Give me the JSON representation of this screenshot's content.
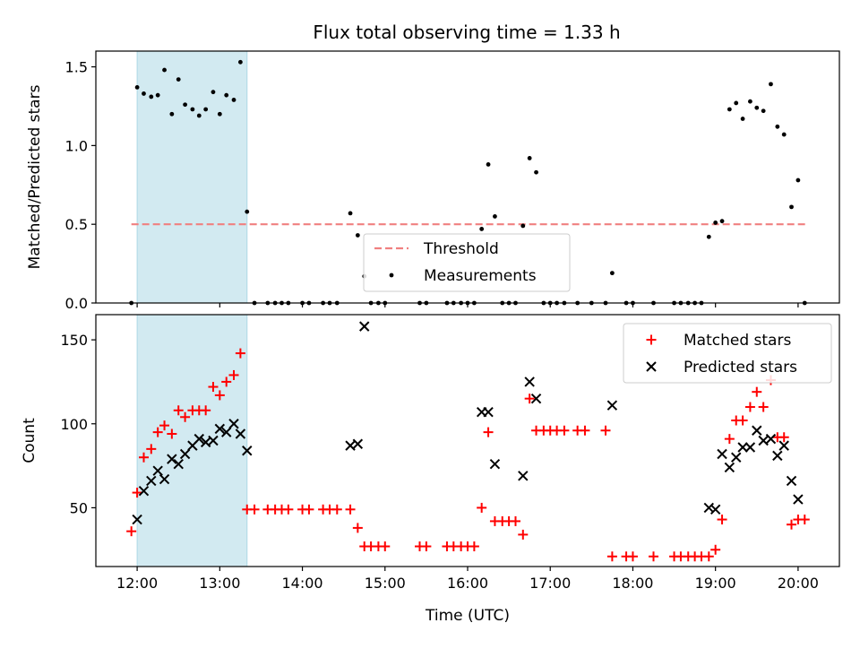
{
  "title": "Flux total observing time = 1.33 h",
  "colors": {
    "shade": "#add8e6",
    "threshold": "#f08080",
    "measurement": "#000000",
    "matched": "#ff0000",
    "predicted": "#000000"
  },
  "chart_data": [
    {
      "type": "scatter",
      "title": "Flux total observing time = 1.33 h",
      "xlabel": "",
      "ylabel": "Matched/Predicted stars",
      "xlim": [
        11.5,
        20.5
      ],
      "ylim": [
        0.0,
        1.6
      ],
      "yticks": [
        0.0,
        0.5,
        1.0,
        1.5
      ],
      "ytick_labels": [
        "0.0",
        "0.5",
        "1.0",
        "1.5"
      ],
      "shaded_span": [
        12.0,
        13.33
      ],
      "threshold": {
        "name": "Threshold",
        "value": 0.5,
        "x_range": [
          11.93,
          20.1
        ]
      },
      "legend": [
        "Threshold",
        "Measurements"
      ],
      "legend_loc": "lower center",
      "series": [
        {
          "name": "Measurements",
          "points": [
            [
              11.93,
              0.0
            ],
            [
              12.0,
              1.37
            ],
            [
              12.08,
              1.33
            ],
            [
              12.17,
              1.31
            ],
            [
              12.25,
              1.32
            ],
            [
              12.33,
              1.48
            ],
            [
              12.42,
              1.2
            ],
            [
              12.5,
              1.42
            ],
            [
              12.58,
              1.26
            ],
            [
              12.67,
              1.23
            ],
            [
              12.75,
              1.19
            ],
            [
              12.83,
              1.23
            ],
            [
              12.92,
              1.34
            ],
            [
              13.0,
              1.2
            ],
            [
              13.08,
              1.32
            ],
            [
              13.17,
              1.29
            ],
            [
              13.25,
              1.53
            ],
            [
              13.33,
              0.58
            ],
            [
              13.42,
              0.0
            ],
            [
              13.58,
              0.0
            ],
            [
              13.67,
              0.0
            ],
            [
              13.75,
              0.0
            ],
            [
              13.83,
              0.0
            ],
            [
              14.0,
              0.0
            ],
            [
              14.08,
              0.0
            ],
            [
              14.25,
              0.0
            ],
            [
              14.33,
              0.0
            ],
            [
              14.42,
              0.0
            ],
            [
              14.58,
              0.57
            ],
            [
              14.67,
              0.43
            ],
            [
              14.75,
              0.17
            ],
            [
              14.83,
              0.0
            ],
            [
              14.92,
              0.0
            ],
            [
              15.0,
              0.0
            ],
            [
              15.42,
              0.0
            ],
            [
              15.5,
              0.0
            ],
            [
              15.75,
              0.0
            ],
            [
              15.83,
              0.0
            ],
            [
              15.92,
              0.0
            ],
            [
              16.0,
              0.0
            ],
            [
              16.08,
              0.0
            ],
            [
              16.17,
              0.47
            ],
            [
              16.25,
              0.88
            ],
            [
              16.33,
              0.55
            ],
            [
              16.42,
              0.0
            ],
            [
              16.5,
              0.0
            ],
            [
              16.58,
              0.0
            ],
            [
              16.67,
              0.49
            ],
            [
              16.75,
              0.92
            ],
            [
              16.83,
              0.83
            ],
            [
              16.92,
              0.0
            ],
            [
              17.0,
              0.0
            ],
            [
              17.08,
              0.0
            ],
            [
              17.17,
              0.0
            ],
            [
              17.33,
              0.0
            ],
            [
              17.5,
              0.0
            ],
            [
              17.67,
              0.0
            ],
            [
              17.75,
              0.19
            ],
            [
              17.92,
              0.0
            ],
            [
              18.0,
              0.0
            ],
            [
              18.25,
              0.0
            ],
            [
              18.5,
              0.0
            ],
            [
              18.58,
              0.0
            ],
            [
              18.67,
              0.0
            ],
            [
              18.75,
              0.0
            ],
            [
              18.83,
              0.0
            ],
            [
              18.92,
              0.42
            ],
            [
              19.0,
              0.51
            ],
            [
              19.08,
              0.52
            ],
            [
              19.17,
              1.23
            ],
            [
              19.25,
              1.27
            ],
            [
              19.33,
              1.17
            ],
            [
              19.42,
              1.28
            ],
            [
              19.5,
              1.24
            ],
            [
              19.58,
              1.22
            ],
            [
              19.67,
              1.39
            ],
            [
              19.75,
              1.12
            ],
            [
              19.83,
              1.07
            ],
            [
              19.92,
              0.61
            ],
            [
              20.0,
              0.78
            ],
            [
              20.08,
              0.0
            ]
          ]
        }
      ]
    },
    {
      "type": "scatter",
      "title": "",
      "xlabel": "Time (UTC)",
      "ylabel": "Count",
      "xlim": [
        11.5,
        20.5
      ],
      "ylim": [
        15,
        165
      ],
      "yticks": [
        50,
        100,
        150
      ],
      "ytick_labels": [
        "50",
        "100",
        "150"
      ],
      "xticks": [
        12,
        13,
        14,
        15,
        16,
        17,
        18,
        19,
        20
      ],
      "xtick_labels": [
        "12:00",
        "13:00",
        "14:00",
        "15:00",
        "16:00",
        "17:00",
        "18:00",
        "19:00",
        "20:00"
      ],
      "shaded_span": [
        12.0,
        13.33
      ],
      "legend": [
        "Matched stars",
        "Predicted stars"
      ],
      "legend_loc": "upper right",
      "series": [
        {
          "name": "Matched stars",
          "marker": "+",
          "points": [
            [
              11.93,
              36
            ],
            [
              12.0,
              59
            ],
            [
              12.08,
              80
            ],
            [
              12.17,
              85
            ],
            [
              12.25,
              95
            ],
            [
              12.33,
              99
            ],
            [
              12.42,
              94
            ],
            [
              12.5,
              108
            ],
            [
              12.58,
              104
            ],
            [
              12.67,
              108
            ],
            [
              12.75,
              108
            ],
            [
              12.83,
              108
            ],
            [
              12.92,
              122
            ],
            [
              13.0,
              117
            ],
            [
              13.08,
              125
            ],
            [
              13.17,
              129
            ],
            [
              13.25,
              142
            ],
            [
              13.33,
              49
            ],
            [
              13.42,
              49
            ],
            [
              13.58,
              49
            ],
            [
              13.67,
              49
            ],
            [
              13.75,
              49
            ],
            [
              13.83,
              49
            ],
            [
              14.0,
              49
            ],
            [
              14.08,
              49
            ],
            [
              14.25,
              49
            ],
            [
              14.33,
              49
            ],
            [
              14.42,
              49
            ],
            [
              14.58,
              49
            ],
            [
              14.67,
              38
            ],
            [
              14.75,
              27
            ],
            [
              14.83,
              27
            ],
            [
              14.92,
              27
            ],
            [
              15.0,
              27
            ],
            [
              15.42,
              27
            ],
            [
              15.5,
              27
            ],
            [
              15.75,
              27
            ],
            [
              15.83,
              27
            ],
            [
              15.92,
              27
            ],
            [
              16.0,
              27
            ],
            [
              16.08,
              27
            ],
            [
              16.17,
              50
            ],
            [
              16.25,
              95
            ],
            [
              16.33,
              42
            ],
            [
              16.42,
              42
            ],
            [
              16.5,
              42
            ],
            [
              16.58,
              42
            ],
            [
              16.67,
              34
            ],
            [
              16.75,
              115
            ],
            [
              16.83,
              96
            ],
            [
              16.92,
              96
            ],
            [
              17.0,
              96
            ],
            [
              17.08,
              96
            ],
            [
              17.17,
              96
            ],
            [
              17.33,
              96
            ],
            [
              17.42,
              96
            ],
            [
              17.67,
              96
            ],
            [
              17.75,
              21
            ],
            [
              17.92,
              21
            ],
            [
              18.0,
              21
            ],
            [
              18.25,
              21
            ],
            [
              18.5,
              21
            ],
            [
              18.58,
              21
            ],
            [
              18.67,
              21
            ],
            [
              18.75,
              21
            ],
            [
              18.83,
              21
            ],
            [
              18.92,
              21
            ],
            [
              19.0,
              25
            ],
            [
              19.08,
              43
            ],
            [
              19.17,
              91
            ],
            [
              19.25,
              102
            ],
            [
              19.33,
              102
            ],
            [
              19.42,
              110
            ],
            [
              19.5,
              119
            ],
            [
              19.58,
              110
            ],
            [
              19.67,
              126
            ],
            [
              19.75,
              92
            ],
            [
              19.83,
              92
            ],
            [
              19.92,
              40
            ],
            [
              20.0,
              43
            ],
            [
              20.08,
              43
            ]
          ]
        },
        {
          "name": "Predicted stars",
          "marker": "x",
          "points": [
            [
              12.0,
              43
            ],
            [
              12.08,
              60
            ],
            [
              12.17,
              66
            ],
            [
              12.25,
              72
            ],
            [
              12.33,
              67
            ],
            [
              12.42,
              79
            ],
            [
              12.5,
              76
            ],
            [
              12.58,
              82
            ],
            [
              12.67,
              87
            ],
            [
              12.75,
              91
            ],
            [
              12.83,
              89
            ],
            [
              12.92,
              90
            ],
            [
              13.0,
              97
            ],
            [
              13.08,
              95
            ],
            [
              13.17,
              100
            ],
            [
              13.25,
              94
            ],
            [
              13.33,
              84
            ],
            [
              14.58,
              87
            ],
            [
              14.67,
              88
            ],
            [
              14.75,
              158
            ],
            [
              16.17,
              107
            ],
            [
              16.25,
              107
            ],
            [
              16.33,
              76
            ],
            [
              16.67,
              69
            ],
            [
              16.75,
              125
            ],
            [
              16.83,
              115
            ],
            [
              17.75,
              111
            ],
            [
              18.92,
              50
            ],
            [
              19.0,
              49
            ],
            [
              19.08,
              82
            ],
            [
              19.17,
              74
            ],
            [
              19.25,
              80
            ],
            [
              19.33,
              86
            ],
            [
              19.42,
              86
            ],
            [
              19.5,
              96
            ],
            [
              19.58,
              90
            ],
            [
              19.67,
              91
            ],
            [
              19.75,
              81
            ],
            [
              19.83,
              87
            ],
            [
              19.92,
              66
            ],
            [
              20.0,
              55
            ]
          ]
        }
      ]
    }
  ]
}
